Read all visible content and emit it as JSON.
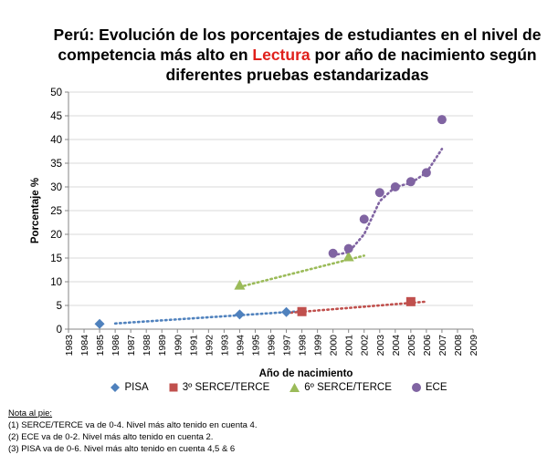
{
  "title": {
    "line1": "Perú: Evolución de los porcentajes de estudiantes en el nivel de",
    "line2_pre": "competencia más alto en ",
    "line2_highlight": "Lectura",
    "line2_post": " por año de nacimiento según",
    "line3": "diferentes pruebas estandarizadas"
  },
  "colors": {
    "pisa": "#4f81bd",
    "serce3": "#c0504d",
    "serce6": "#9bbb59",
    "ece": "#8064a2",
    "highlight": "#e0201b"
  },
  "chart_data": {
    "type": "scatter",
    "xlabel": "Año de nacimiento",
    "ylabel": "Porcentaje %",
    "xlim": [
      1983,
      2009
    ],
    "ylim": [
      0,
      50
    ],
    "xticks": [
      1983,
      1984,
      1985,
      1986,
      1987,
      1988,
      1989,
      1990,
      1991,
      1992,
      1993,
      1994,
      1995,
      1996,
      1997,
      1998,
      1999,
      2000,
      2001,
      2002,
      2003,
      2004,
      2005,
      2006,
      2007,
      2008,
      2009
    ],
    "yticks": [
      0,
      5,
      10,
      15,
      20,
      25,
      30,
      35,
      40,
      45,
      50
    ],
    "grid": "horizontal",
    "legend_position": "bottom",
    "trendlines": "dotted",
    "series": [
      {
        "name": "PISA",
        "marker": "diamond",
        "color": "#4f81bd",
        "x": [
          1985,
          1994,
          1997
        ],
        "y": [
          1.1,
          3.1,
          3.6
        ],
        "trend": {
          "x": [
            1986,
            1998
          ],
          "y": [
            1.2,
            3.8
          ]
        }
      },
      {
        "name": "3º SERCE/TERCE",
        "marker": "square",
        "color": "#c0504d",
        "x": [
          1998,
          2005
        ],
        "y": [
          3.7,
          5.8
        ],
        "trend": {
          "x": [
            1997,
            2006
          ],
          "y": [
            3.4,
            5.8
          ]
        }
      },
      {
        "name": "6º SERCE/TERCE",
        "marker": "triangle",
        "color": "#9bbb59",
        "x": [
          1994,
          2001
        ],
        "y": [
          9.3,
          15.3
        ],
        "trend": {
          "x": [
            1994,
            2002
          ],
          "y": [
            8.9,
            15.5
          ]
        }
      },
      {
        "name": "ECE",
        "marker": "circle",
        "color": "#8064a2",
        "x": [
          2000,
          2001,
          2002,
          2003,
          2004,
          2005,
          2006,
          2007
        ],
        "y": [
          16,
          17,
          23.2,
          28.8,
          30,
          31.1,
          33,
          44.2
        ],
        "trend": {
          "x": [
            2000,
            2001,
            2002,
            2003,
            2004,
            2005,
            2006,
            2007
          ],
          "y": [
            15.6,
            16.2,
            20.0,
            27.0,
            30.0,
            30.8,
            33.0,
            38.0
          ]
        }
      }
    ]
  },
  "notes": {
    "title": "Nota al pie:",
    "lines": [
      "(1) SERCE/TERCE va de 0-4. Nivel más alto tenido en cuenta 4.",
      "(2) ECE va de 0-2. Nivel más alto tenido en cuenta 2.",
      "(3) PISA va de 0-6. Nivel más alto tenido en cuenta 4,5 & 6"
    ]
  }
}
